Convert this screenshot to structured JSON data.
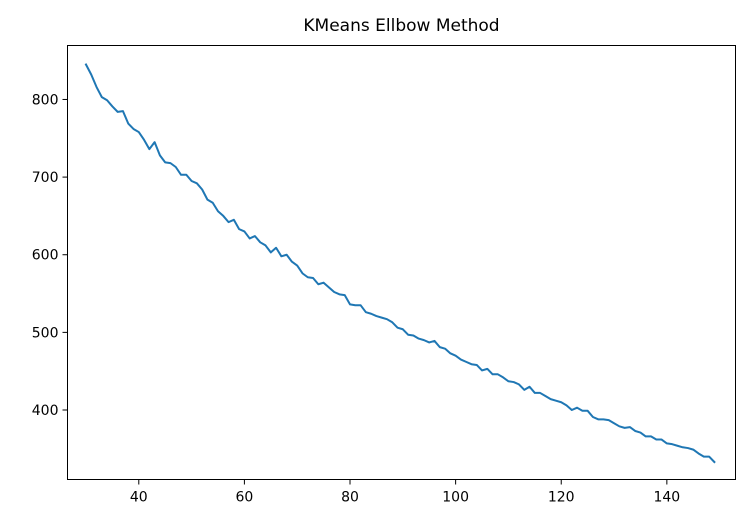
{
  "chart_data": {
    "type": "line",
    "title": "KMeans Ellbow Method",
    "xlabel": "",
    "ylabel": "",
    "xlim": [
      26.5,
      153
    ],
    "ylim": [
      310.5,
      869.5
    ],
    "xticks": [
      40,
      60,
      80,
      100,
      120,
      140
    ],
    "yticks": [
      400,
      500,
      600,
      700,
      800
    ],
    "grid": false,
    "line_color": "#1f77b4",
    "series": [
      {
        "x": [
          30,
          31,
          32,
          33,
          34,
          35,
          36,
          37,
          38,
          39,
          40,
          41,
          42,
          43,
          44,
          45,
          46,
          47,
          48,
          49,
          50,
          51,
          52,
          53,
          54,
          55,
          56,
          57,
          58,
          59,
          60,
          61,
          62,
          63,
          64,
          65,
          66,
          67,
          68,
          69,
          70,
          71,
          72,
          73,
          74,
          75,
          76,
          77,
          78,
          79,
          80,
          81,
          82,
          83,
          84,
          85,
          86,
          87,
          88,
          89,
          90,
          91,
          92,
          93,
          94,
          95,
          96,
          97,
          98,
          99,
          100,
          101,
          102,
          103,
          104,
          105,
          106,
          107,
          108,
          109,
          110,
          111,
          112,
          113,
          114,
          115,
          116,
          117,
          118,
          119,
          120,
          121,
          122,
          123,
          124,
          125,
          126,
          127,
          128,
          129,
          130,
          131,
          132,
          133,
          134,
          135,
          136,
          137,
          138,
          139,
          140,
          141,
          142,
          143,
          144,
          145,
          146,
          147,
          148,
          149
        ],
        "values": [
          845,
          832,
          816,
          803,
          799,
          791,
          784,
          785,
          769,
          762,
          758,
          748,
          736,
          745,
          728,
          719,
          718,
          713,
          703,
          703,
          695,
          692,
          684,
          671,
          667,
          656,
          650,
          642,
          645,
          633,
          630,
          621,
          624,
          616,
          612,
          603,
          609,
          598,
          600,
          591,
          586,
          576,
          571,
          570,
          562,
          564,
          558,
          552,
          549,
          548,
          536,
          535,
          535,
          526,
          524,
          521,
          519,
          517,
          513,
          506,
          504,
          497,
          496,
          492,
          490,
          487,
          489,
          481,
          479,
          473,
          470,
          465,
          462,
          459,
          458,
          451,
          453,
          446,
          446,
          442,
          437,
          436,
          433,
          426,
          430,
          422,
          422,
          418,
          414,
          412,
          410,
          406,
          400,
          403,
          399,
          399,
          391,
          388,
          388,
          387,
          383,
          379,
          377,
          378,
          373,
          371,
          366,
          366,
          362,
          362,
          357,
          356,
          354,
          352,
          351,
          349,
          344,
          340,
          340,
          333
        ]
      }
    ]
  }
}
